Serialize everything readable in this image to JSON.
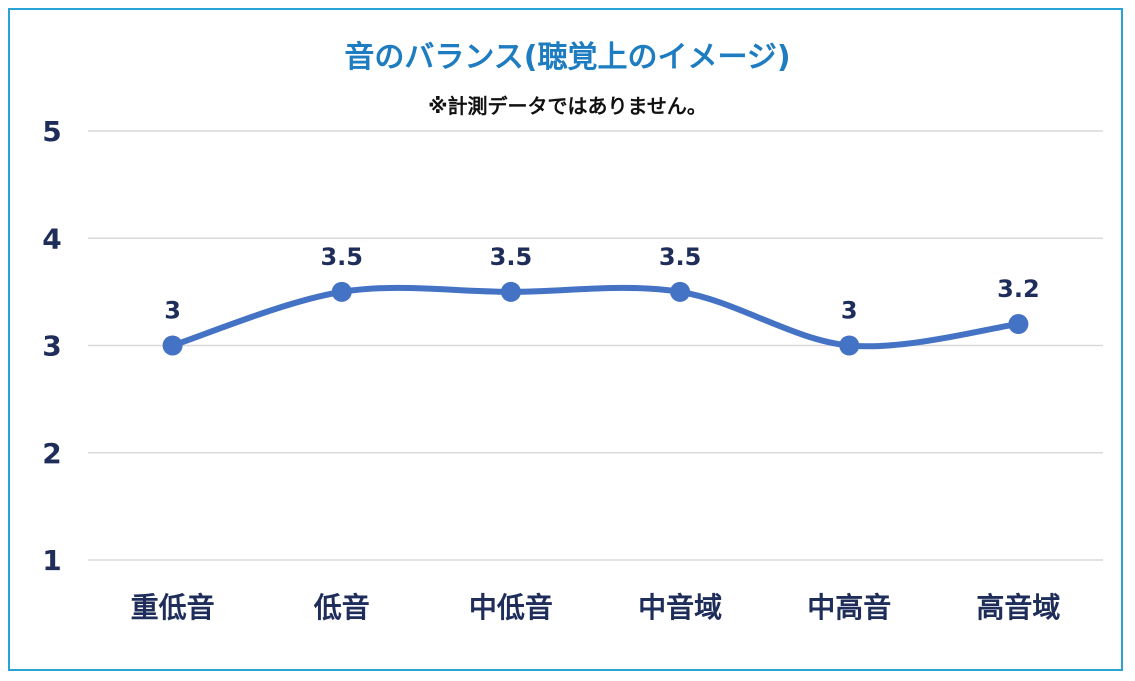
{
  "chart_data": {
    "type": "line",
    "title": "音のバランス(聴覚上のイメージ)",
    "subtitle": "※計測データではありません。",
    "xlabel": "",
    "ylabel": "",
    "categories": [
      "重低音",
      "低音",
      "中低音",
      "中音域",
      "中高音",
      "高音域"
    ],
    "series": [
      {
        "values": [
          3,
          3.5,
          3.5,
          3.5,
          3,
          3.2
        ]
      }
    ],
    "data_labels": [
      "3",
      "3.5",
      "3.5",
      "3.5",
      "3",
      "3.2"
    ],
    "yticks": [
      "1",
      "2",
      "3",
      "4",
      "5"
    ],
    "ylim": [
      1,
      5
    ],
    "grid": true,
    "smooth": true,
    "colors": {
      "line": "#4472c4",
      "grid": "#d9d9d9",
      "text": "#1f2d5a",
      "title": "#1e7cc0",
      "border": "#29a3d6"
    }
  }
}
